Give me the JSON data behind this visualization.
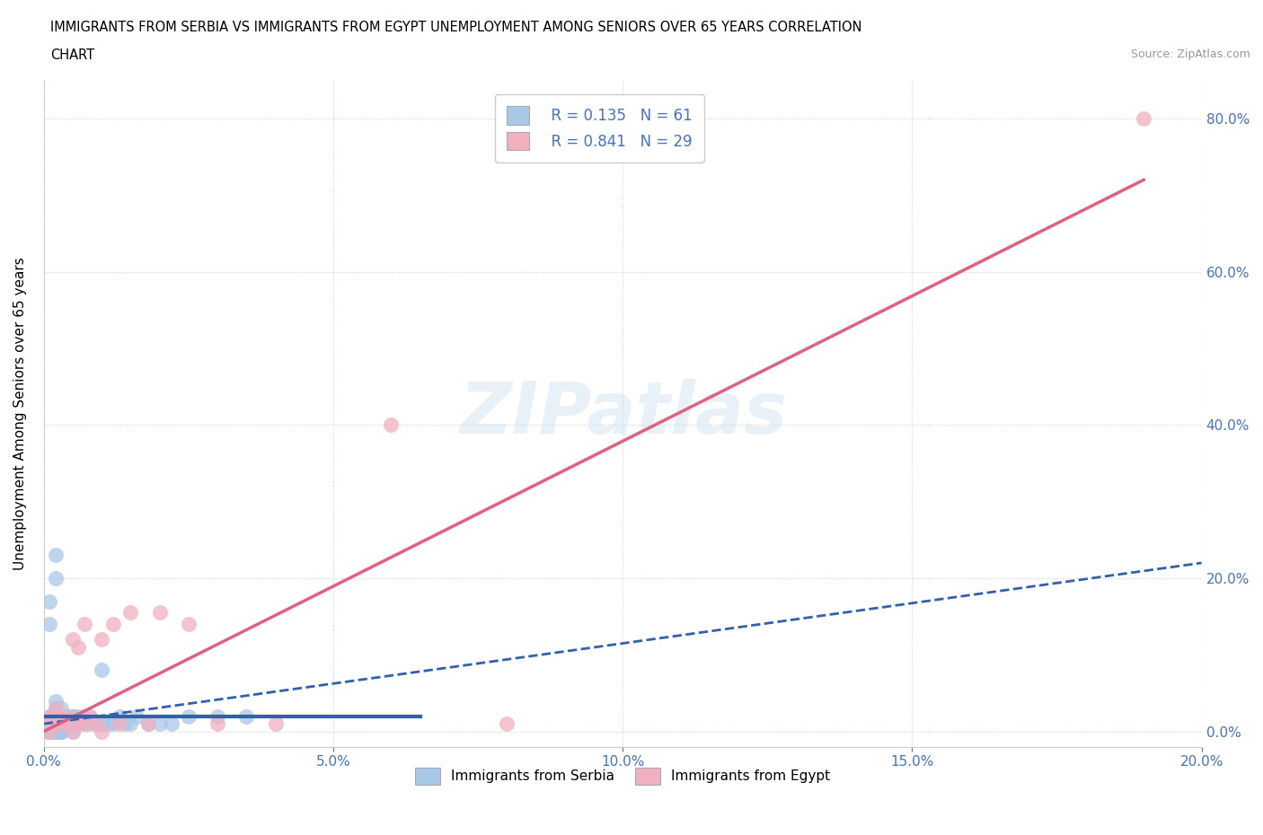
{
  "title_line1": "IMMIGRANTS FROM SERBIA VS IMMIGRANTS FROM EGYPT UNEMPLOYMENT AMONG SENIORS OVER 65 YEARS CORRELATION",
  "title_line2": "CHART",
  "source": "Source: ZipAtlas.com",
  "ylabel": "Unemployment Among Seniors over 65 years",
  "xlim": [
    0.0,
    0.2
  ],
  "ylim": [
    -0.02,
    0.85
  ],
  "xticks": [
    0.0,
    0.05,
    0.1,
    0.15,
    0.2
  ],
  "yticks": [
    0.0,
    0.2,
    0.4,
    0.6,
    0.8
  ],
  "grid_color": "#d0d0d0",
  "watermark": "ZIPatlas",
  "legend_R1": "R = 0.135",
  "legend_N1": "N = 61",
  "legend_R2": "R = 0.841",
  "legend_N2": "N = 29",
  "serbia_color": "#a8c8e8",
  "egypt_color": "#f0b0c0",
  "serbia_line_color": "#3060b0",
  "egypt_line_color": "#e06080",
  "tick_color": "#4472c4",
  "serbia_scatter_x": [
    0.001,
    0.001,
    0.001,
    0.001,
    0.002,
    0.002,
    0.002,
    0.002,
    0.002,
    0.002,
    0.003,
    0.003,
    0.003,
    0.003,
    0.004,
    0.004,
    0.005,
    0.005,
    0.005,
    0.006,
    0.006,
    0.007,
    0.007,
    0.008,
    0.008,
    0.009,
    0.01,
    0.01,
    0.011,
    0.012,
    0.013,
    0.014,
    0.015,
    0.016,
    0.018,
    0.02,
    0.022,
    0.025,
    0.03,
    0.035,
    0.001,
    0.001,
    0.002,
    0.002,
    0.003,
    0.003,
    0.004,
    0.004,
    0.005,
    0.005,
    0.001,
    0.001,
    0.002,
    0.002,
    0.003,
    0.003,
    0.001,
    0.002,
    0.001,
    0.002,
    0.001
  ],
  "serbia_scatter_y": [
    0.0,
    0.0,
    0.01,
    0.02,
    0.0,
    0.01,
    0.01,
    0.02,
    0.03,
    0.04,
    0.0,
    0.01,
    0.02,
    0.03,
    0.01,
    0.02,
    0.0,
    0.01,
    0.02,
    0.01,
    0.02,
    0.01,
    0.02,
    0.01,
    0.02,
    0.01,
    0.01,
    0.08,
    0.01,
    0.01,
    0.02,
    0.01,
    0.01,
    0.02,
    0.01,
    0.01,
    0.01,
    0.02,
    0.02,
    0.02,
    0.17,
    0.14,
    0.23,
    0.2,
    0.02,
    0.02,
    0.02,
    0.02,
    0.02,
    0.02,
    0.0,
    0.0,
    0.0,
    0.0,
    0.0,
    0.0,
    0.0,
    0.0,
    0.0,
    0.0,
    0.0
  ],
  "egypt_scatter_x": [
    0.001,
    0.001,
    0.002,
    0.002,
    0.003,
    0.003,
    0.004,
    0.004,
    0.005,
    0.005,
    0.006,
    0.006,
    0.007,
    0.007,
    0.008,
    0.009,
    0.01,
    0.01,
    0.012,
    0.013,
    0.015,
    0.018,
    0.02,
    0.025,
    0.03,
    0.04,
    0.06,
    0.08,
    0.19
  ],
  "egypt_scatter_y": [
    0.0,
    0.02,
    0.01,
    0.03,
    0.01,
    0.02,
    0.01,
    0.02,
    0.0,
    0.12,
    0.01,
    0.11,
    0.14,
    0.01,
    0.02,
    0.01,
    0.12,
    0.0,
    0.14,
    0.01,
    0.155,
    0.01,
    0.155,
    0.14,
    0.01,
    0.01,
    0.4,
    0.01,
    0.8
  ],
  "serbia_trend": [
    0.0,
    0.065,
    0.02
  ],
  "egypt_trend_x0": 0.0,
  "egypt_trend_x1": 0.19,
  "egypt_trend_y0": 0.0,
  "egypt_trend_y1": 0.72
}
